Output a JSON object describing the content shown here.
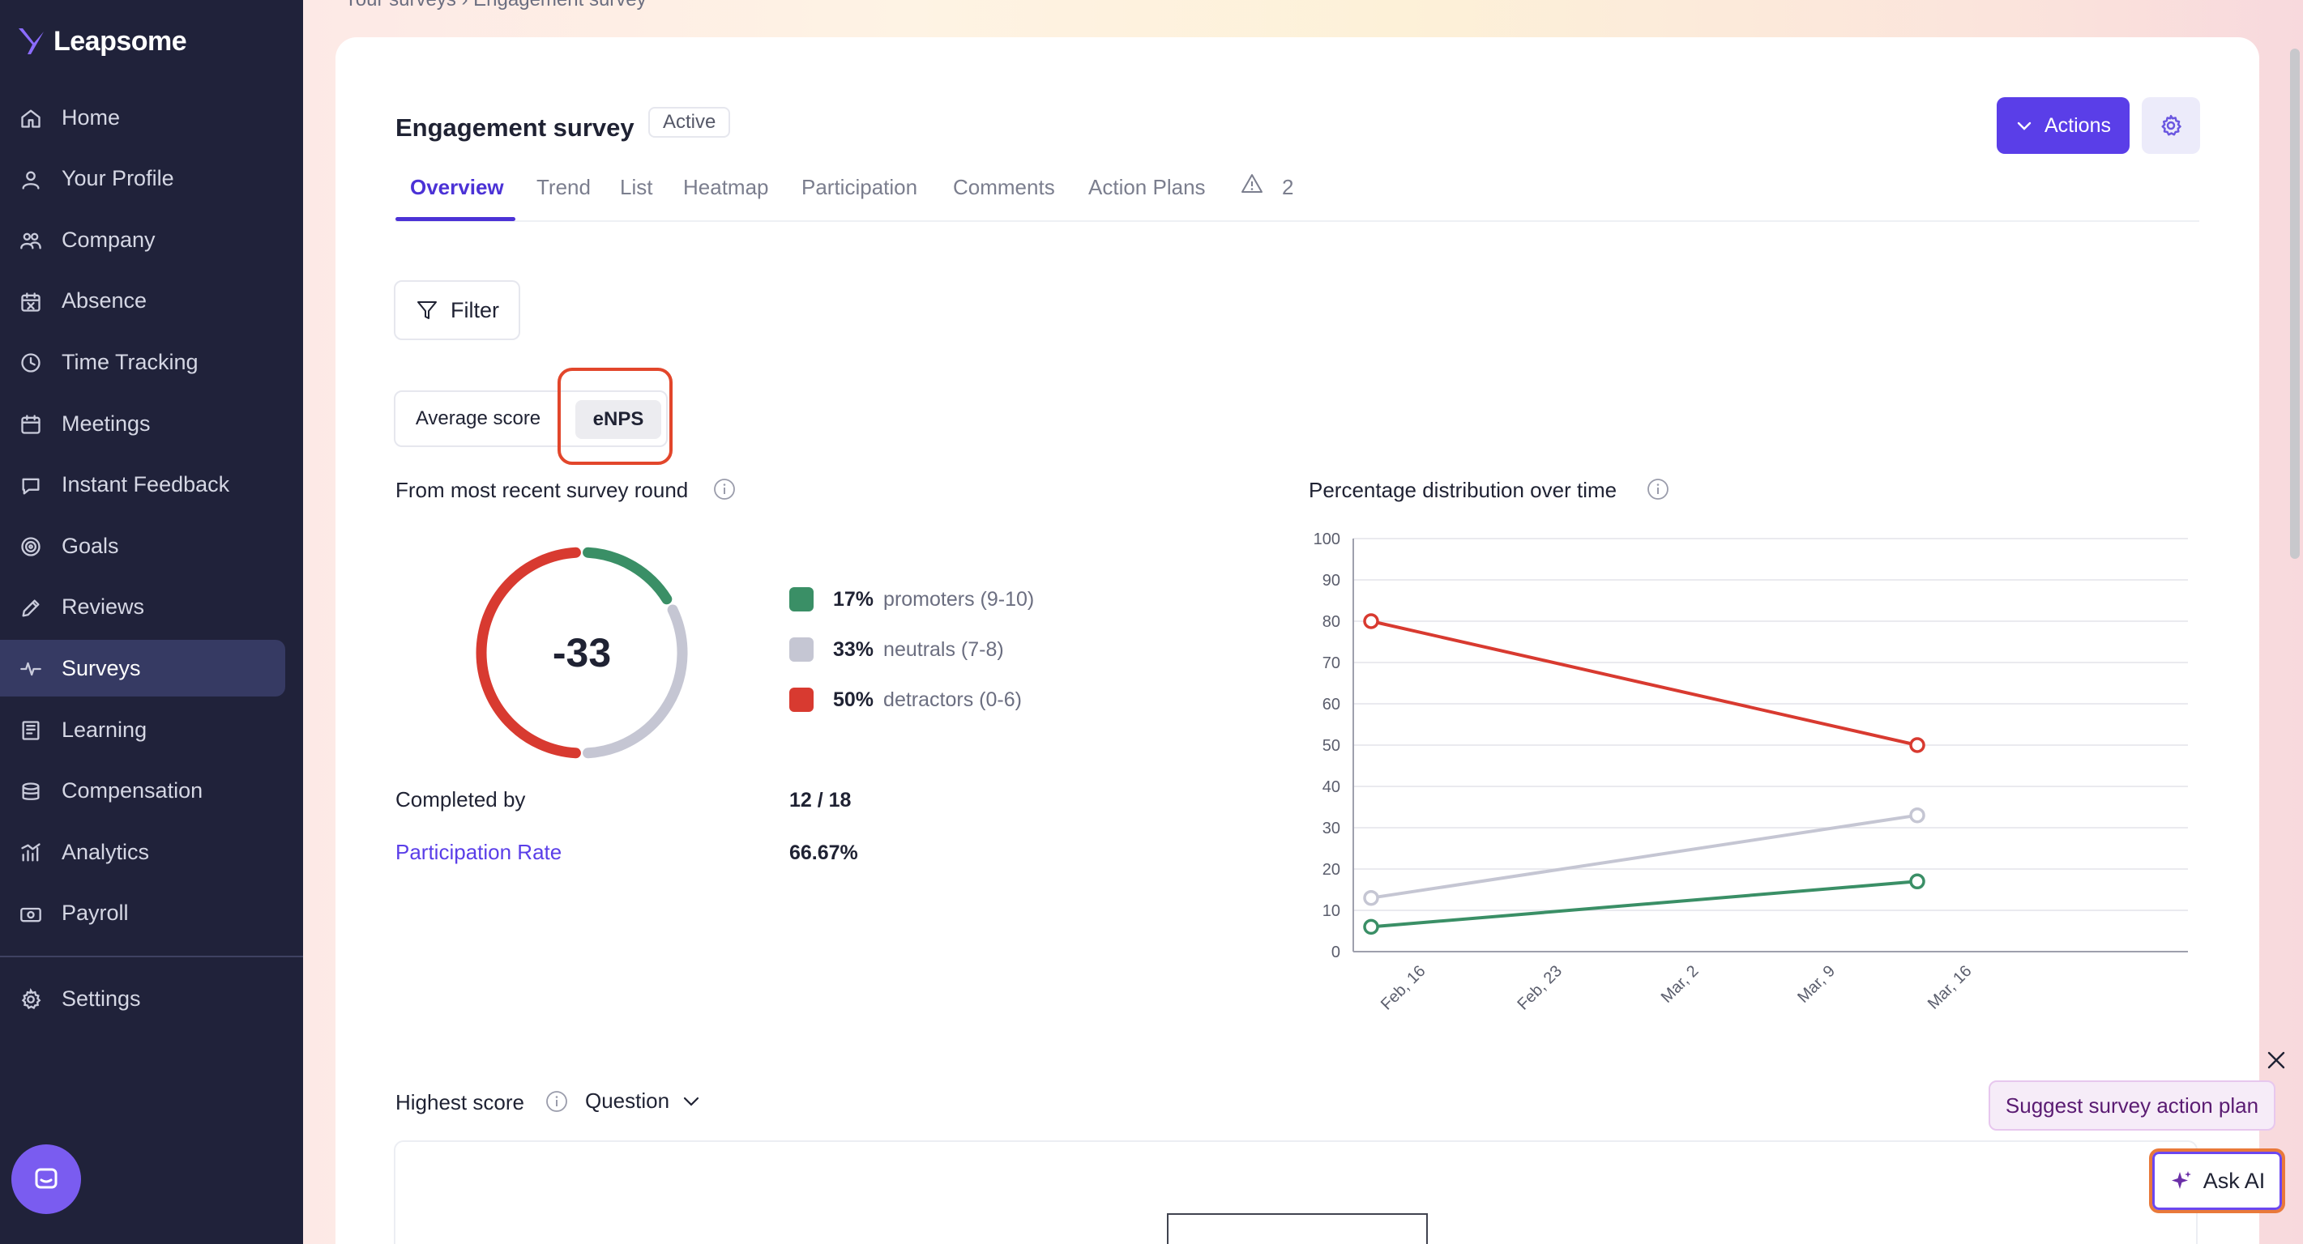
{
  "app": {
    "name": "Leapsome"
  },
  "sidebar": {
    "items": [
      {
        "label": "Home",
        "icon": "home-icon",
        "active": false
      },
      {
        "label": "Your Profile",
        "icon": "user-icon",
        "active": false
      },
      {
        "label": "Company",
        "icon": "people-icon",
        "active": false
      },
      {
        "label": "Absence",
        "icon": "calendar-x-icon",
        "active": false
      },
      {
        "label": "Time Tracking",
        "icon": "clock-icon",
        "active": false
      },
      {
        "label": "Meetings",
        "icon": "calendar-icon",
        "active": false
      },
      {
        "label": "Instant Feedback",
        "icon": "chat-icon",
        "active": false
      },
      {
        "label": "Goals",
        "icon": "target-icon",
        "active": false
      },
      {
        "label": "Reviews",
        "icon": "pencil-icon",
        "active": false
      },
      {
        "label": "Surveys",
        "icon": "pulse-icon",
        "active": true
      },
      {
        "label": "Learning",
        "icon": "book-icon",
        "active": false
      },
      {
        "label": "Compensation",
        "icon": "coins-icon",
        "active": false
      },
      {
        "label": "Analytics",
        "icon": "bar-chart-icon",
        "active": false
      },
      {
        "label": "Payroll",
        "icon": "money-icon",
        "active": false
      }
    ],
    "settings": {
      "label": "Settings",
      "icon": "gear-icon"
    }
  },
  "breadcrumb": {
    "text": "Your surveys  ›  Engagement survey"
  },
  "header": {
    "title": "Engagement survey",
    "status": "Active",
    "actions_label": "Actions"
  },
  "tabs": [
    {
      "label": "Overview",
      "active": true
    },
    {
      "label": "Trend",
      "active": false
    },
    {
      "label": "List",
      "active": false
    },
    {
      "label": "Heatmap",
      "active": false
    },
    {
      "label": "Participation",
      "active": false
    },
    {
      "label": "Comments",
      "active": false
    },
    {
      "label": "Action Plans",
      "active": false
    }
  ],
  "warnings": {
    "count": "2"
  },
  "filter": {
    "label": "Filter"
  },
  "toggle": {
    "average": "Average score",
    "enps": "eNPS",
    "selected": "eNPS"
  },
  "recent": {
    "title": "From most recent survey round",
    "score": "-33",
    "legend": [
      {
        "pct": "17%",
        "label": "promoters (9-10)",
        "color": "#3a8f66"
      },
      {
        "pct": "33%",
        "label": "neutrals (7-8)",
        "color": "#c5c6d3"
      },
      {
        "pct": "50%",
        "label": "detractors (0-6)",
        "color": "#d83a30"
      }
    ],
    "completed_label": "Completed by",
    "completed_value": "12 / 18",
    "participation_label": "Participation Rate",
    "participation_value": "66.67%"
  },
  "distribution": {
    "title": "Percentage distribution over time"
  },
  "chart_data": {
    "type": "line",
    "title": "Percentage distribution over time",
    "x": [
      "Feb, 16",
      "Feb, 23",
      "Mar, 2",
      "Mar, 9",
      "Mar, 16"
    ],
    "ylim": [
      0,
      100
    ],
    "yticks": [
      0,
      10,
      20,
      30,
      40,
      50,
      60,
      70,
      80,
      90,
      100
    ],
    "grid": true,
    "series": [
      {
        "key": "detractors",
        "color": "#d83a30",
        "points": [
          {
            "x": "Feb, 16",
            "y": 80
          },
          {
            "x": "Mar, 16",
            "y": 50
          }
        ]
      },
      {
        "key": "neutrals",
        "color": "#c5c6d3",
        "points": [
          {
            "x": "Feb, 16",
            "y": 13
          },
          {
            "x": "Mar, 16",
            "y": 33
          }
        ]
      },
      {
        "key": "promoters",
        "color": "#3a8f66",
        "points": [
          {
            "x": "Feb, 16",
            "y": 6
          },
          {
            "x": "Mar, 16",
            "y": 17
          }
        ]
      }
    ]
  },
  "highest": {
    "label": "Highest score",
    "dropdown": "Question"
  },
  "assistant": {
    "suggest_label": "Suggest survey action plan",
    "ask_label": "Ask AI"
  },
  "colors": {
    "brand": "#5a3ee8",
    "sidebar_bg": "#20223a",
    "highlight": "#e2462b"
  }
}
